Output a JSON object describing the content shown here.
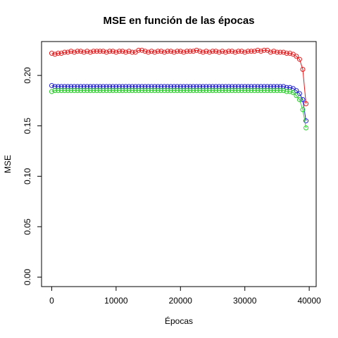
{
  "chart_data": {
    "type": "line",
    "title": "MSE en función de las épocas",
    "xlabel": "Épocas",
    "ylabel": "MSE",
    "x": [
      0,
      500,
      1000,
      1500,
      2000,
      2500,
      3000,
      3500,
      4000,
      4500,
      5000,
      5500,
      6000,
      6500,
      7000,
      7500,
      8000,
      8500,
      9000,
      9500,
      10000,
      10500,
      11000,
      11500,
      12000,
      12500,
      13000,
      13500,
      14000,
      14500,
      15000,
      15500,
      16000,
      16500,
      17000,
      17500,
      18000,
      18500,
      19000,
      19500,
      20000,
      20500,
      21000,
      21500,
      22000,
      22500,
      23000,
      23500,
      24000,
      24500,
      25000,
      25500,
      26000,
      26500,
      27000,
      27500,
      28000,
      28500,
      29000,
      29500,
      30000,
      30500,
      31000,
      31500,
      32000,
      32500,
      33000,
      33500,
      34000,
      34500,
      35000,
      35500,
      36000,
      36500,
      37000,
      37500,
      38000,
      38500,
      39000,
      39500
    ],
    "series": [
      {
        "color": "#e41a1c",
        "values": [
          0.222,
          0.221,
          0.222,
          0.222,
          0.223,
          0.223,
          0.224,
          0.223,
          0.224,
          0.224,
          0.223,
          0.224,
          0.223,
          0.224,
          0.224,
          0.224,
          0.224,
          0.223,
          0.224,
          0.224,
          0.223,
          0.224,
          0.224,
          0.223,
          0.224,
          0.223,
          0.223,
          0.225,
          0.225,
          0.224,
          0.223,
          0.224,
          0.223,
          0.224,
          0.224,
          0.223,
          0.224,
          0.224,
          0.223,
          0.224,
          0.224,
          0.223,
          0.224,
          0.224,
          0.224,
          0.225,
          0.224,
          0.223,
          0.224,
          0.223,
          0.224,
          0.224,
          0.223,
          0.224,
          0.223,
          0.224,
          0.224,
          0.223,
          0.224,
          0.224,
          0.223,
          0.224,
          0.224,
          0.224,
          0.225,
          0.224,
          0.225,
          0.225,
          0.223,
          0.224,
          0.223,
          0.223,
          0.223,
          0.222,
          0.222,
          0.221,
          0.219,
          0.216,
          0.206,
          0.172
        ]
      },
      {
        "color": "#2020d0",
        "values": [
          0.19,
          0.189,
          0.189,
          0.189,
          0.189,
          0.189,
          0.189,
          0.189,
          0.189,
          0.189,
          0.189,
          0.189,
          0.189,
          0.189,
          0.189,
          0.189,
          0.189,
          0.189,
          0.189,
          0.189,
          0.189,
          0.189,
          0.189,
          0.189,
          0.189,
          0.189,
          0.189,
          0.189,
          0.189,
          0.189,
          0.189,
          0.189,
          0.189,
          0.189,
          0.189,
          0.189,
          0.189,
          0.189,
          0.189,
          0.189,
          0.189,
          0.189,
          0.189,
          0.189,
          0.189,
          0.189,
          0.189,
          0.189,
          0.189,
          0.189,
          0.189,
          0.189,
          0.189,
          0.189,
          0.189,
          0.189,
          0.189,
          0.189,
          0.189,
          0.189,
          0.189,
          0.189,
          0.189,
          0.189,
          0.189,
          0.189,
          0.189,
          0.189,
          0.189,
          0.189,
          0.189,
          0.189,
          0.189,
          0.188,
          0.188,
          0.187,
          0.185,
          0.182,
          0.176,
          0.155
        ]
      },
      {
        "color": "#30d030",
        "values": [
          0.184,
          0.185,
          0.185,
          0.185,
          0.185,
          0.185,
          0.185,
          0.185,
          0.185,
          0.185,
          0.185,
          0.185,
          0.185,
          0.185,
          0.185,
          0.185,
          0.185,
          0.185,
          0.185,
          0.185,
          0.185,
          0.185,
          0.185,
          0.185,
          0.185,
          0.185,
          0.185,
          0.185,
          0.185,
          0.185,
          0.185,
          0.185,
          0.185,
          0.185,
          0.185,
          0.185,
          0.185,
          0.185,
          0.185,
          0.185,
          0.185,
          0.185,
          0.185,
          0.185,
          0.185,
          0.185,
          0.185,
          0.185,
          0.185,
          0.185,
          0.185,
          0.185,
          0.185,
          0.185,
          0.185,
          0.185,
          0.185,
          0.185,
          0.185,
          0.185,
          0.185,
          0.185,
          0.185,
          0.185,
          0.185,
          0.185,
          0.185,
          0.185,
          0.185,
          0.185,
          0.185,
          0.185,
          0.185,
          0.184,
          0.184,
          0.183,
          0.18,
          0.176,
          0.166,
          0.148
        ]
      }
    ],
    "xlim": [
      -1580,
      41080
    ],
    "ylim": [
      -0.0094,
      0.2336
    ],
    "xticks": [
      0,
      10000,
      20000,
      30000,
      40000
    ],
    "yticks": [
      {
        "value": 0,
        "label": "0.00"
      },
      {
        "value": 0.05,
        "label": "0.05"
      },
      {
        "value": 0.1,
        "label": "0.10"
      },
      {
        "value": 0.15,
        "label": "0.15"
      },
      {
        "value": 0.2,
        "label": "0.20"
      }
    ]
  }
}
